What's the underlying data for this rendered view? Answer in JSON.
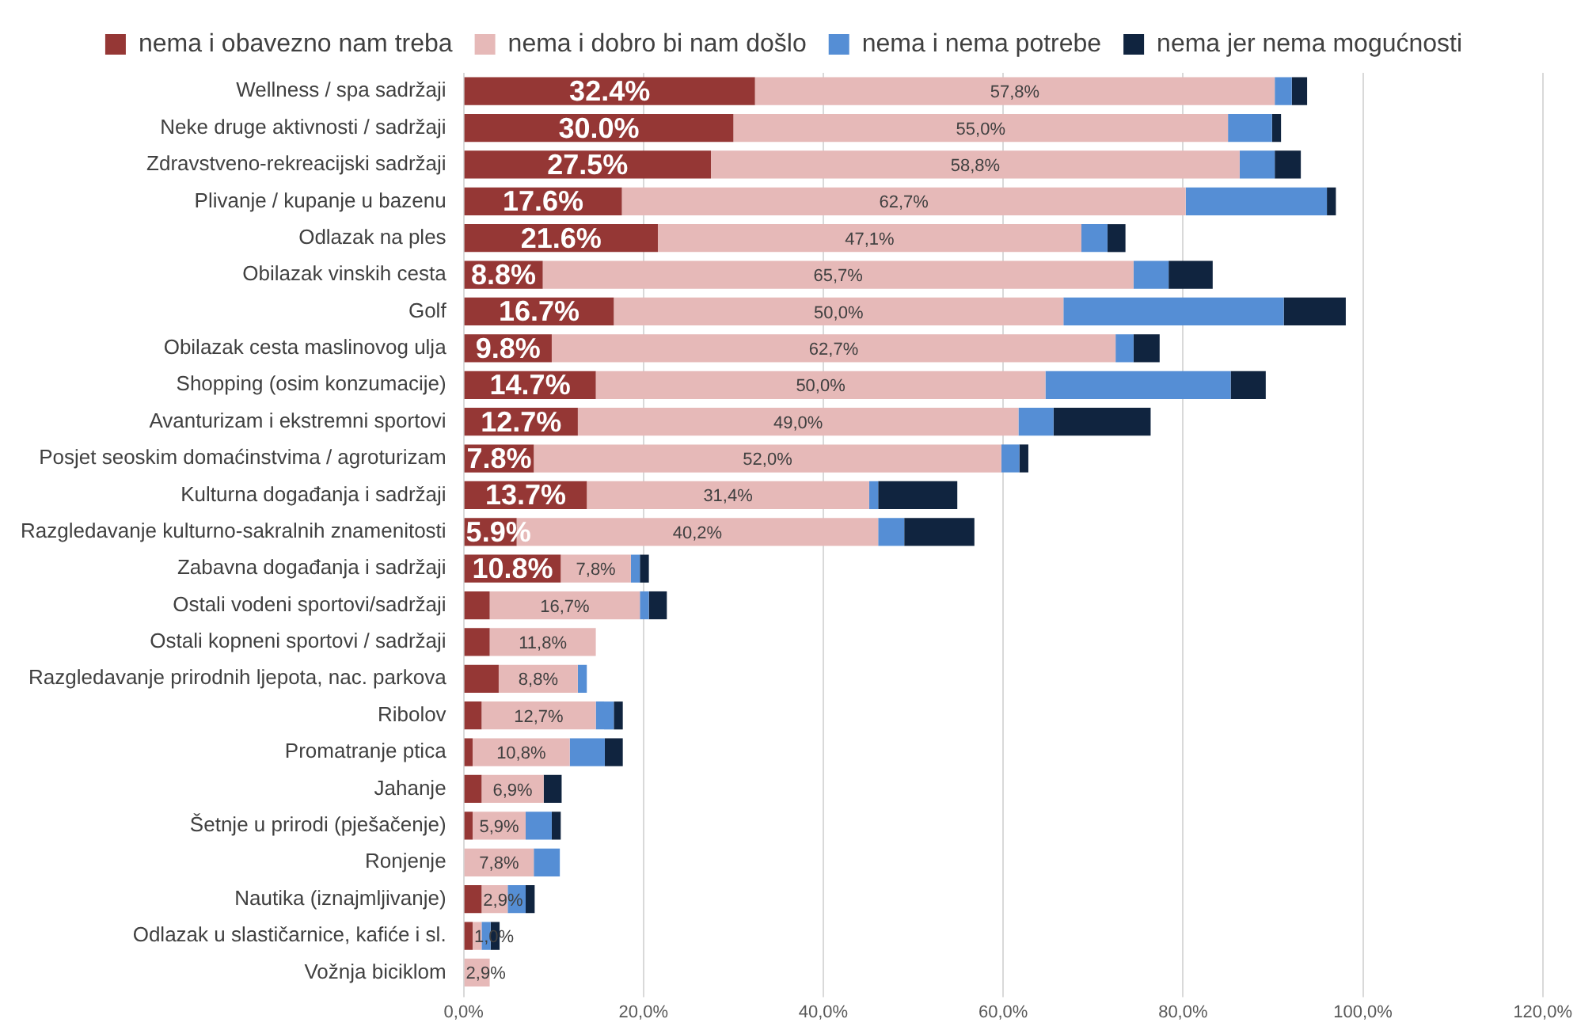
{
  "chart_data": {
    "type": "bar",
    "orientation": "horizontal",
    "stacked": true,
    "legend": "top",
    "grid": "x",
    "categories": [
      "Wellness / spa sadržaji",
      "Neke druge aktivnosti / sadržaji",
      "Zdravstveno-rekreacijski sadržaji",
      "Plivanje / kupanje u bazenu",
      "Odlazak na ples",
      "Obilazak vinskih cesta",
      "Golf",
      "Obilazak cesta maslinovog ulja",
      "Shopping (osim konzumacije)",
      "Avanturizam i ekstremni sportovi",
      "Posjet seoskim domaćinstvima / agroturizam",
      "Kulturna događanja i sadržaji",
      "Razgledavanje kulturno-sakralnih znamenitosti",
      "Zabavna događanja i sadržaji",
      "Ostali vodeni sportovi/sadržaji",
      "Ostali kopneni sportovi / sadržaji",
      "Razgledavanje prirodnih ljepota, nac. parkova",
      "Ribolov",
      "Promatranje ptica",
      "Jahanje",
      "Šetnje u prirodi (pješačenje)",
      "Ronjenje",
      "Nautika (iznajmljivanje)",
      "Odlazak u slastičarnice, kafiće i sl.",
      "Vožnja biciklom"
    ],
    "xlim": [
      0,
      120
    ],
    "xticks": [
      {
        "value": 0,
        "label": "0,0%"
      },
      {
        "value": 20,
        "label": "20,0%"
      },
      {
        "value": 40,
        "label": "40,0%"
      },
      {
        "value": 60,
        "label": "60,0%"
      },
      {
        "value": 80,
        "label": "80,0%"
      },
      {
        "value": 100,
        "label": "100,0%"
      },
      {
        "value": 120,
        "label": "120,0%"
      }
    ],
    "series": [
      {
        "name": "nema i obavezno nam treba",
        "color": "#953735",
        "values": [
          32.4,
          30.0,
          27.5,
          17.6,
          21.6,
          8.8,
          16.7,
          9.8,
          14.7,
          12.7,
          7.8,
          13.7,
          5.9,
          10.8,
          2.9,
          2.9,
          3.9,
          2.0,
          1.0,
          2.0,
          1.0,
          0,
          2.0,
          1.0,
          0
        ],
        "value_labels": [
          "32.4%",
          "30.0%",
          "27.5%",
          "17.6%",
          "21.6%",
          "8.8%",
          "16.7%",
          "9.8%",
          "14.7%",
          "12.7%",
          "7.8%",
          "13.7%",
          "5.9%",
          "10.8%",
          null,
          null,
          null,
          null,
          null,
          null,
          null,
          null,
          null,
          null,
          null
        ]
      },
      {
        "name": "nema i dobro bi nam došlo",
        "color": "#e6b9b8",
        "values": [
          57.8,
          55.0,
          58.8,
          62.7,
          47.1,
          65.7,
          50.0,
          62.7,
          50.0,
          49.0,
          52.0,
          31.4,
          40.2,
          7.8,
          16.7,
          11.8,
          8.8,
          12.7,
          10.8,
          6.9,
          5.9,
          7.8,
          2.9,
          1.0,
          2.9
        ],
        "value_labels": [
          "57,8%",
          "55,0%",
          "58,8%",
          "62,7%",
          "47,1%",
          "65,7%",
          "50,0%",
          "62,7%",
          "50,0%",
          "49,0%",
          "52,0%",
          "31,4%",
          "40,2%",
          "7,8%",
          "16,7%",
          "11,8%",
          "8,8%",
          "12,7%",
          "10,8%",
          "6,9%",
          "5,9%",
          "7,8%",
          "2,9%",
          "1,0%",
          "2,9%"
        ]
      },
      {
        "name": "nema i nema potrebe",
        "color": "#558ed5",
        "values": [
          1.9,
          4.9,
          3.9,
          15.7,
          2.9,
          3.9,
          24.5,
          2.0,
          20.6,
          3.9,
          2.0,
          1.0,
          2.9,
          1.0,
          1.0,
          0,
          1.0,
          2.0,
          3.9,
          0,
          2.9,
          2.9,
          2.0,
          1.0,
          0
        ]
      },
      {
        "name": "nema jer nema mogućnosti",
        "color": "#10243f",
        "values": [
          1.7,
          1.0,
          2.9,
          1.0,
          2.0,
          4.9,
          6.9,
          2.9,
          3.9,
          10.8,
          1.0,
          8.8,
          7.8,
          1.0,
          2.0,
          0,
          0,
          1.0,
          2.0,
          2.0,
          1.0,
          0,
          1.0,
          1.0,
          0
        ]
      }
    ]
  }
}
